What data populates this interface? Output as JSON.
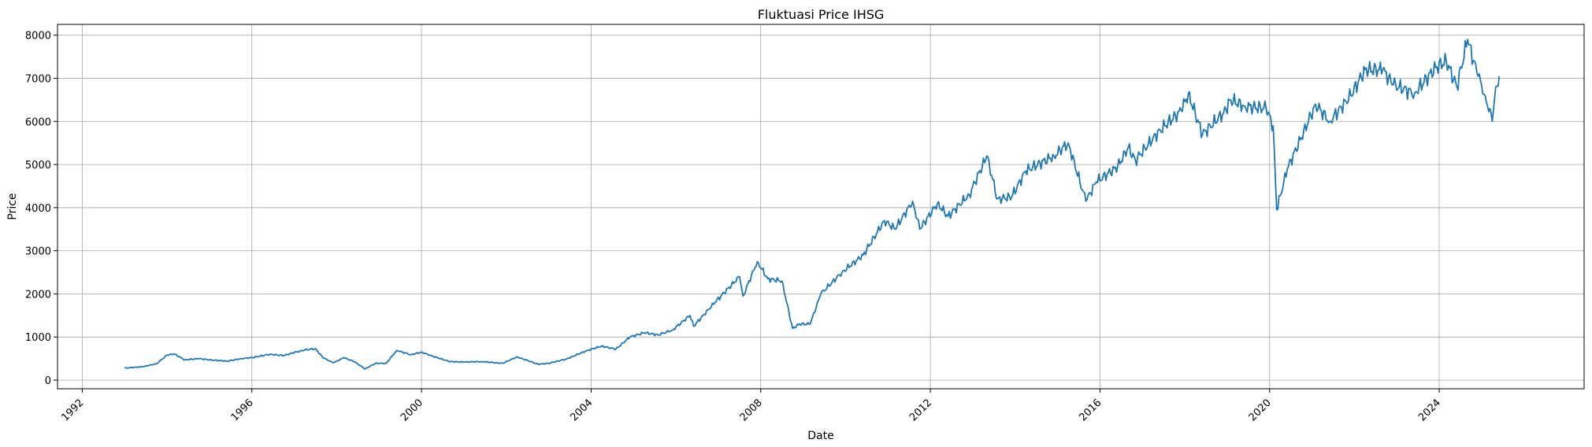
{
  "chart_data": {
    "type": "line",
    "title": "Fluktuasi Price IHSG",
    "xlabel": "Date",
    "ylabel": "Price",
    "xlim": [
      "1991-06-01",
      "2027-06-01"
    ],
    "ylim": [
      -200,
      8250
    ],
    "grid": true,
    "x_ticks": [
      "1992",
      "1996",
      "2000",
      "2004",
      "2008",
      "2012",
      "2016",
      "2020",
      "2024"
    ],
    "y_ticks": [
      0,
      1000,
      2000,
      3000,
      4000,
      5000,
      6000,
      7000,
      8000
    ],
    "series": [
      {
        "color": "#1f77b4",
        "points": [
          [
            "1993-01-01",
            280
          ],
          [
            "1993-06-01",
            310
          ],
          [
            "1993-10-01",
            380
          ],
          [
            "1994-01-01",
            580
          ],
          [
            "1994-03-01",
            610
          ],
          [
            "1994-06-01",
            470
          ],
          [
            "1994-10-01",
            500
          ],
          [
            "1995-01-01",
            470
          ],
          [
            "1995-06-01",
            440
          ],
          [
            "1995-10-01",
            500
          ],
          [
            "1996-01-01",
            520
          ],
          [
            "1996-06-01",
            600
          ],
          [
            "1996-10-01",
            570
          ],
          [
            "1997-01-01",
            640
          ],
          [
            "1997-04-01",
            700
          ],
          [
            "1997-07-01",
            730
          ],
          [
            "1997-09-01",
            530
          ],
          [
            "1997-12-01",
            400
          ],
          [
            "1998-03-01",
            520
          ],
          [
            "1998-06-01",
            430
          ],
          [
            "1998-09-01",
            260
          ],
          [
            "1998-12-01",
            390
          ],
          [
            "1999-03-01",
            390
          ],
          [
            "1999-06-01",
            690
          ],
          [
            "1999-10-01",
            590
          ],
          [
            "2000-01-01",
            650
          ],
          [
            "2000-04-01",
            560
          ],
          [
            "2000-09-01",
            430
          ],
          [
            "2001-01-01",
            420
          ],
          [
            "2001-06-01",
            430
          ],
          [
            "2001-12-01",
            390
          ],
          [
            "2002-04-01",
            540
          ],
          [
            "2002-10-01",
            370
          ],
          [
            "2003-01-01",
            390
          ],
          [
            "2003-06-01",
            490
          ],
          [
            "2003-12-01",
            690
          ],
          [
            "2004-04-01",
            790
          ],
          [
            "2004-08-01",
            720
          ],
          [
            "2004-12-01",
            1000
          ],
          [
            "2005-04-01",
            1100
          ],
          [
            "2005-08-01",
            1050
          ],
          [
            "2005-12-01",
            1160
          ],
          [
            "2006-05-01",
            1500
          ],
          [
            "2006-06-01",
            1250
          ],
          [
            "2006-12-01",
            1800
          ],
          [
            "2007-07-01",
            2400
          ],
          [
            "2007-08-01",
            1950
          ],
          [
            "2007-12-01",
            2750
          ],
          [
            "2008-03-01",
            2350
          ],
          [
            "2008-07-01",
            2300
          ],
          [
            "2008-10-01",
            1200
          ],
          [
            "2008-12-01",
            1300
          ],
          [
            "2009-03-01",
            1300
          ],
          [
            "2009-06-01",
            2000
          ],
          [
            "2009-12-01",
            2500
          ],
          [
            "2010-06-01",
            2900
          ],
          [
            "2010-12-01",
            3700
          ],
          [
            "2011-03-01",
            3500
          ],
          [
            "2011-08-01",
            4150
          ],
          [
            "2011-10-01",
            3500
          ],
          [
            "2012-03-01",
            4100
          ],
          [
            "2012-06-01",
            3800
          ],
          [
            "2012-12-01",
            4300
          ],
          [
            "2013-05-01",
            5200
          ],
          [
            "2013-08-01",
            4200
          ],
          [
            "2013-12-01",
            4250
          ],
          [
            "2014-04-01",
            4850
          ],
          [
            "2014-12-01",
            5200
          ],
          [
            "2015-04-01",
            5500
          ],
          [
            "2015-09-01",
            4150
          ],
          [
            "2015-12-01",
            4600
          ],
          [
            "2016-06-01",
            4950
          ],
          [
            "2016-09-01",
            5400
          ],
          [
            "2016-11-01",
            5100
          ],
          [
            "2017-06-01",
            5800
          ],
          [
            "2017-12-01",
            6250
          ],
          [
            "2018-02-01",
            6650
          ],
          [
            "2018-06-01",
            5700
          ],
          [
            "2018-12-01",
            6200
          ],
          [
            "2019-02-01",
            6500
          ],
          [
            "2019-06-01",
            6350
          ],
          [
            "2019-12-01",
            6300
          ],
          [
            "2020-02-01",
            5900
          ],
          [
            "2020-03-01",
            3950
          ],
          [
            "2020-06-01",
            4900
          ],
          [
            "2020-12-01",
            6000
          ],
          [
            "2021-02-01",
            6400
          ],
          [
            "2021-06-01",
            6000
          ],
          [
            "2021-12-01",
            6600
          ],
          [
            "2022-04-01",
            7200
          ],
          [
            "2022-09-01",
            7200
          ],
          [
            "2022-12-01",
            6850
          ],
          [
            "2023-06-01",
            6650
          ],
          [
            "2023-12-01",
            7250
          ],
          [
            "2024-03-01",
            7400
          ],
          [
            "2024-06-01",
            6800
          ],
          [
            "2024-09-01",
            7900
          ],
          [
            "2024-12-01",
            7050
          ],
          [
            "2025-02-01",
            6600
          ],
          [
            "2025-04-01",
            6000
          ],
          [
            "2025-05-01",
            6800
          ],
          [
            "2025-06-01",
            7050
          ]
        ]
      }
    ]
  }
}
